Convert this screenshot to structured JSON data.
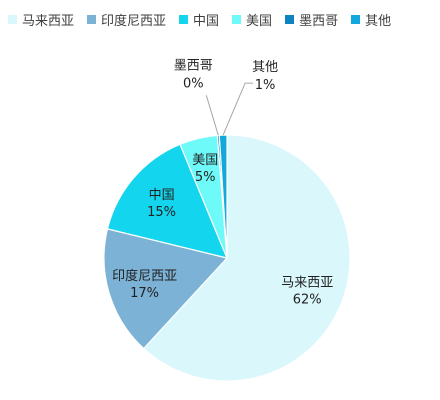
{
  "chart_data": {
    "type": "pie",
    "categories": [
      "马来西亚",
      "印度尼西亚",
      "中国",
      "美国",
      "墨西哥",
      "其他"
    ],
    "values": [
      62,
      17,
      15,
      5,
      0,
      1
    ],
    "value_labels": [
      "62%",
      "17%",
      "15%",
      "5%",
      "0%",
      "1%"
    ],
    "colors": [
      "#DAF7FC",
      "#7BB2D6",
      "#14D5EE",
      "#6DFAF8",
      "#0D84BF",
      "#11A9DB"
    ],
    "title": "",
    "legend_position": "top"
  }
}
